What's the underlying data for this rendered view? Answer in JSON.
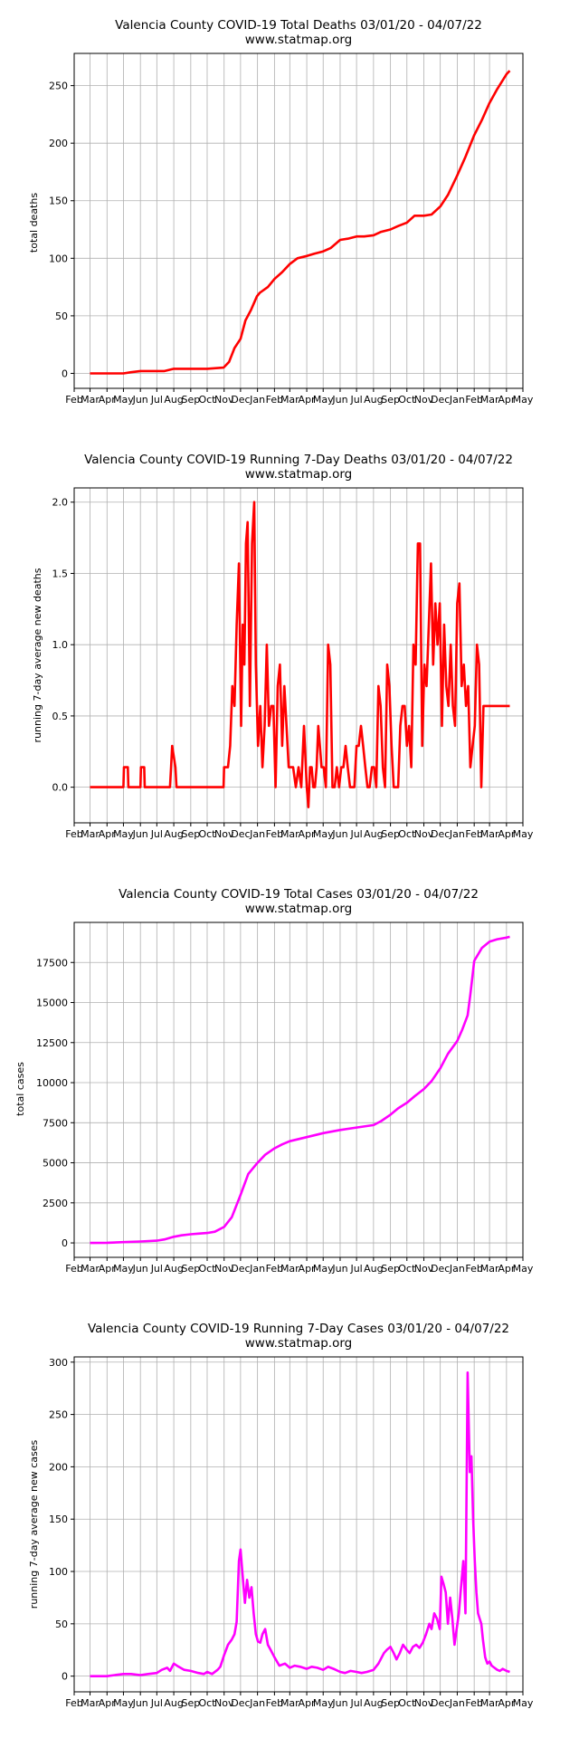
{
  "chart_data": [
    {
      "type": "line",
      "title": "Valencia County COVID-19 Total Deaths 03/01/20 - 04/07/22",
      "subtitle": "www.statmap.org",
      "xlabel": "",
      "ylabel": "total deaths",
      "ylim": [
        -13,
        278
      ],
      "yticks": [
        0,
        50,
        100,
        150,
        200,
        250
      ],
      "xlim": [
        "2020-02-01",
        "2022-05-01"
      ],
      "xticks": [
        "Feb",
        "Mar",
        "Apr",
        "May",
        "Jun",
        "Jul",
        "Aug",
        "Sep",
        "Oct",
        "Nov",
        "Dec",
        "Jan",
        "Feb",
        "Mar",
        "Apr",
        "May",
        "Jun",
        "Jul",
        "Aug",
        "Sep",
        "Oct",
        "Nov",
        "Dec",
        "Jan",
        "Feb",
        "Mar",
        "Apr",
        "May"
      ],
      "grid": true,
      "color": "#ff0000",
      "series": [
        {
          "x": [
            "2020-03-01",
            "2020-04-01",
            "2020-05-01",
            "2020-05-15",
            "2020-06-01",
            "2020-07-01",
            "2020-07-15",
            "2020-08-01",
            "2020-09-01",
            "2020-10-01",
            "2020-10-31",
            "2020-11-10",
            "2020-11-20",
            "2020-12-01",
            "2020-12-10",
            "2020-12-20",
            "2020-12-31",
            "2021-01-05",
            "2021-01-20",
            "2021-02-01",
            "2021-02-15",
            "2021-03-01",
            "2021-03-15",
            "2021-04-01",
            "2021-04-15",
            "2021-05-01",
            "2021-05-15",
            "2021-06-01",
            "2021-06-15",
            "2021-07-01",
            "2021-07-15",
            "2021-08-01",
            "2021-08-15",
            "2021-09-01",
            "2021-09-15",
            "2021-10-01",
            "2021-10-15",
            "2021-11-01",
            "2021-11-15",
            "2021-12-01",
            "2021-12-15",
            "2022-01-01",
            "2022-01-15",
            "2022-02-01",
            "2022-02-15",
            "2022-03-01",
            "2022-03-15",
            "2022-04-01",
            "2022-04-07"
          ],
          "y": [
            0,
            0,
            0,
            1,
            2,
            2,
            2,
            4,
            4,
            4,
            5,
            10,
            22,
            30,
            46,
            55,
            67,
            70,
            75,
            82,
            88,
            95,
            100,
            102,
            104,
            106,
            109,
            116,
            117,
            119,
            119,
            120,
            123,
            125,
            128,
            131,
            137,
            137,
            138,
            145,
            155,
            172,
            187,
            207,
            220,
            235,
            247,
            260,
            263
          ]
        }
      ]
    },
    {
      "type": "line",
      "title": "Valencia County COVID-19 Running 7-Day Deaths 03/01/20 - 04/07/22",
      "subtitle": "www.statmap.org",
      "xlabel": "",
      "ylabel": "running 7-day average new deaths",
      "ylim": [
        -0.25,
        2.1
      ],
      "yticks": [
        0.0,
        0.5,
        1.0,
        1.5,
        2.0
      ],
      "xlim": [
        "2020-02-01",
        "2022-05-01"
      ],
      "xticks": [
        "Feb",
        "Mar",
        "Apr",
        "May",
        "Jun",
        "Jul",
        "Aug",
        "Sep",
        "Oct",
        "Nov",
        "Dec",
        "Jan",
        "Feb",
        "Mar",
        "Apr",
        "May",
        "Jun",
        "Jul",
        "Aug",
        "Sep",
        "Oct",
        "Nov",
        "Dec",
        "Jan",
        "Feb",
        "Mar",
        "Apr",
        "May"
      ],
      "grid": true,
      "color": "#ff0000",
      "series": [
        {
          "x": [
            "2020-03-01",
            "2020-05-01",
            "2020-05-02",
            "2020-05-09",
            "2020-05-10",
            "2020-06-01",
            "2020-06-02",
            "2020-06-08",
            "2020-06-09",
            "2020-07-25",
            "2020-07-27",
            "2020-07-29",
            "2020-08-04",
            "2020-08-06",
            "2020-10-31",
            "2020-11-01",
            "2020-11-07",
            "2020-11-08",
            "2020-11-12",
            "2020-11-16",
            "2020-11-20",
            "2020-11-24",
            "2020-11-28",
            "2020-12-02",
            "2020-12-05",
            "2020-12-08",
            "2020-12-11",
            "2020-12-14",
            "2020-12-18",
            "2020-12-22",
            "2020-12-26",
            "2020-12-29",
            "2021-01-02",
            "2021-01-06",
            "2021-01-10",
            "2021-01-14",
            "2021-01-18",
            "2021-01-22",
            "2021-01-26",
            "2021-01-30",
            "2021-02-03",
            "2021-02-07",
            "2021-02-11",
            "2021-02-15",
            "2021-02-19",
            "2021-02-23",
            "2021-02-27",
            "2021-03-03",
            "2021-03-07",
            "2021-03-12",
            "2021-03-17",
            "2021-03-22",
            "2021-03-27",
            "2021-04-01",
            "2021-04-04",
            "2021-04-07",
            "2021-04-10",
            "2021-04-13",
            "2021-04-16",
            "2021-04-19",
            "2021-04-22",
            "2021-04-25",
            "2021-04-28",
            "2021-05-02",
            "2021-05-06",
            "2021-05-10",
            "2021-05-14",
            "2021-05-18",
            "2021-05-22",
            "2021-05-26",
            "2021-05-30",
            "2021-06-03",
            "2021-06-07",
            "2021-06-11",
            "2021-06-15",
            "2021-06-19",
            "2021-06-23",
            "2021-06-27",
            "2021-07-01",
            "2021-07-05",
            "2021-07-09",
            "2021-07-13",
            "2021-07-17",
            "2021-07-21",
            "2021-07-25",
            "2021-07-29",
            "2021-08-02",
            "2021-08-06",
            "2021-08-10",
            "2021-08-14",
            "2021-08-18",
            "2021-08-22",
            "2021-08-26",
            "2021-08-30",
            "2021-09-03",
            "2021-09-07",
            "2021-09-11",
            "2021-09-15",
            "2021-09-19",
            "2021-09-23",
            "2021-09-27",
            "2021-10-01",
            "2021-10-05",
            "2021-10-09",
            "2021-10-13",
            "2021-10-17",
            "2021-10-21",
            "2021-10-25",
            "2021-10-29",
            "2021-11-02",
            "2021-11-06",
            "2021-11-10",
            "2021-11-14",
            "2021-11-18",
            "2021-11-22",
            "2021-11-26",
            "2021-11-30",
            "2021-12-04",
            "2021-12-08",
            "2021-12-12",
            "2021-12-16",
            "2021-12-20",
            "2021-12-24",
            "2021-12-28",
            "2022-01-01",
            "2022-01-05",
            "2022-01-09",
            "2022-01-13",
            "2022-01-17",
            "2022-01-21",
            "2022-01-25",
            "2022-01-29",
            "2022-02-02",
            "2022-02-06",
            "2022-02-10",
            "2022-02-14",
            "2022-02-18",
            "2022-02-22",
            "2022-02-26",
            "2022-03-02",
            "2022-03-06",
            "2022-03-10",
            "2022-03-14",
            "2022-03-18",
            "2022-03-22",
            "2022-03-26",
            "2022-03-30",
            "2022-04-03",
            "2022-04-07"
          ],
          "y": [
            0,
            0,
            0.14,
            0.14,
            0,
            0,
            0.14,
            0.14,
            0,
            0,
            0.14,
            0.29,
            0.14,
            0,
            0,
            0.14,
            0.14,
            0.14,
            0.29,
            0.71,
            0.57,
            1.14,
            1.57,
            0.43,
            1.14,
            0.86,
            1.71,
            1.86,
            0.57,
            1.71,
            2.0,
            0.86,
            0.29,
            0.57,
            0.14,
            0.43,
            1.0,
            0.43,
            0.57,
            0.57,
            0.0,
            0.71,
            0.86,
            0.29,
            0.71,
            0.43,
            0.14,
            0.14,
            0.14,
            0.0,
            0.14,
            0.0,
            0.43,
            0.0,
            -0.14,
            0.14,
            0.14,
            0.0,
            0.0,
            0.14,
            0.43,
            0.29,
            0.14,
            0.14,
            0.0,
            1.0,
            0.86,
            0.0,
            0.0,
            0.14,
            0.0,
            0.14,
            0.14,
            0.29,
            0.14,
            0.0,
            0.0,
            0.0,
            0.29,
            0.29,
            0.43,
            0.29,
            0.14,
            0.0,
            0.0,
            0.14,
            0.14,
            0.0,
            0.71,
            0.57,
            0.14,
            0.0,
            0.86,
            0.71,
            0.29,
            0.0,
            0.0,
            0.0,
            0.43,
            0.57,
            0.57,
            0.29,
            0.43,
            0.14,
            1.0,
            0.86,
            1.71,
            1.71,
            0.29,
            0.86,
            0.71,
            1.14,
            1.57,
            0.86,
            1.29,
            1.0,
            1.29,
            0.43,
            1.14,
            0.71,
            0.57,
            1.0,
            0.57,
            0.43,
            1.29,
            1.43,
            0.71,
            0.86,
            0.57,
            0.71,
            0.14,
            0.29,
            0.43,
            1.0,
            0.86,
            0.0,
            0.57,
            0.57,
            0.57,
            0.57,
            0.57,
            0.57,
            0.57,
            0.57,
            0.57,
            0.57,
            0.57,
            0.57,
            0.57
          ],
          "note": ""
        }
      ]
    },
    {
      "type": "line",
      "title": "Valencia County COVID-19 Total Cases 03/01/20 - 04/07/22",
      "subtitle": "www.statmap.org",
      "xlabel": "",
      "ylabel": "total cases",
      "ylim": [
        -900,
        20000
      ],
      "yticks": [
        0,
        2500,
        5000,
        7500,
        10000,
        12500,
        15000,
        17500
      ],
      "xlim": [
        "2020-02-01",
        "2022-05-01"
      ],
      "xticks": [
        "Feb",
        "Mar",
        "Apr",
        "May",
        "Jun",
        "Jul",
        "Aug",
        "Sep",
        "Oct",
        "Nov",
        "Dec",
        "Jan",
        "Feb",
        "Mar",
        "Apr",
        "May",
        "Jun",
        "Jul",
        "Aug",
        "Sep",
        "Oct",
        "Nov",
        "Dec",
        "Jan",
        "Feb",
        "Mar",
        "Apr",
        "May"
      ],
      "grid": true,
      "color": "#ff00ff",
      "series": [
        {
          "x": [
            "2020-03-01",
            "2020-04-01",
            "2020-05-01",
            "2020-06-01",
            "2020-07-01",
            "2020-07-15",
            "2020-08-01",
            "2020-08-15",
            "2020-09-01",
            "2020-09-15",
            "2020-10-01",
            "2020-10-15",
            "2020-11-01",
            "2020-11-15",
            "2020-12-01",
            "2020-12-15",
            "2021-01-01",
            "2021-01-15",
            "2021-02-01",
            "2021-02-15",
            "2021-03-01",
            "2021-04-01",
            "2021-05-01",
            "2021-06-01",
            "2021-07-01",
            "2021-08-01",
            "2021-08-15",
            "2021-09-01",
            "2021-09-15",
            "2021-10-01",
            "2021-10-15",
            "2021-11-01",
            "2021-11-15",
            "2021-12-01",
            "2021-12-15",
            "2022-01-01",
            "2022-01-10",
            "2022-01-20",
            "2022-01-25",
            "2022-02-01",
            "2022-02-15",
            "2022-03-01",
            "2022-03-15",
            "2022-04-01",
            "2022-04-07"
          ],
          "y": [
            0,
            10,
            50,
            90,
            140,
            220,
            380,
            470,
            540,
            580,
            620,
            700,
            1000,
            1600,
            3000,
            4300,
            5000,
            5500,
            5900,
            6150,
            6350,
            6600,
            6850,
            7050,
            7200,
            7350,
            7600,
            8000,
            8400,
            8750,
            9150,
            9600,
            10100,
            10900,
            11800,
            12600,
            13300,
            14200,
            15500,
            17600,
            18400,
            18800,
            18950,
            19050,
            19100
          ]
        }
      ]
    },
    {
      "type": "line",
      "title": "Valencia County COVID-19 Running 7-Day Cases 03/01/20 - 04/07/22",
      "subtitle": "www.statmap.org",
      "xlabel": "",
      "ylabel": "running 7-day average new cases",
      "ylim": [
        -15,
        305
      ],
      "yticks": [
        0,
        50,
        100,
        150,
        200,
        250,
        300
      ],
      "xlim": [
        "2020-02-01",
        "2022-05-01"
      ],
      "xticks": [
        "Feb",
        "Mar",
        "Apr",
        "May",
        "Jun",
        "Jul",
        "Aug",
        "Sep",
        "Oct",
        "Nov",
        "Dec",
        "Jan",
        "Feb",
        "Mar",
        "Apr",
        "May",
        "Jun",
        "Jul",
        "Aug",
        "Sep",
        "Oct",
        "Nov",
        "Dec",
        "Jan",
        "Feb",
        "Mar",
        "Apr",
        "May"
      ],
      "grid": true,
      "color": "#ff00ff",
      "series": [
        {
          "x": [
            "2020-03-01",
            "2020-04-01",
            "2020-04-15",
            "2020-05-01",
            "2020-05-15",
            "2020-06-01",
            "2020-06-15",
            "2020-07-01",
            "2020-07-10",
            "2020-07-20",
            "2020-07-25",
            "2020-08-01",
            "2020-08-10",
            "2020-08-20",
            "2020-09-01",
            "2020-09-15",
            "2020-09-25",
            "2020-10-01",
            "2020-10-10",
            "2020-10-20",
            "2020-10-25",
            "2020-11-01",
            "2020-11-08",
            "2020-11-15",
            "2020-11-20",
            "2020-11-24",
            "2020-11-28",
            "2020-12-01",
            "2020-12-05",
            "2020-12-09",
            "2020-12-13",
            "2020-12-17",
            "2020-12-21",
            "2020-12-25",
            "2020-12-29",
            "2021-01-02",
            "2021-01-06",
            "2021-01-10",
            "2021-01-15",
            "2021-01-20",
            "2021-01-25",
            "2021-02-01",
            "2021-02-10",
            "2021-02-20",
            "2021-03-01",
            "2021-03-10",
            "2021-03-20",
            "2021-04-01",
            "2021-04-10",
            "2021-04-20",
            "2021-05-01",
            "2021-05-10",
            "2021-05-20",
            "2021-06-01",
            "2021-06-10",
            "2021-06-20",
            "2021-07-01",
            "2021-07-10",
            "2021-07-20",
            "2021-08-01",
            "2021-08-10",
            "2021-08-20",
            "2021-08-25",
            "2021-09-01",
            "2021-09-07",
            "2021-09-12",
            "2021-09-18",
            "2021-09-24",
            "2021-10-01",
            "2021-10-06",
            "2021-10-12",
            "2021-10-18",
            "2021-10-24",
            "2021-10-30",
            "2021-11-05",
            "2021-11-11",
            "2021-11-15",
            "2021-11-20",
            "2021-11-25",
            "2021-11-30",
            "2021-12-03",
            "2021-12-07",
            "2021-12-11",
            "2021-12-15",
            "2021-12-19",
            "2021-12-23",
            "2021-12-27",
            "2021-12-31",
            "2022-01-04",
            "2022-01-08",
            "2022-01-12",
            "2022-01-16",
            "2022-01-20",
            "2022-01-24",
            "2022-01-27",
            "2022-01-30",
            "2022-02-02",
            "2022-02-05",
            "2022-02-08",
            "2022-02-11",
            "2022-02-14",
            "2022-02-17",
            "2022-02-21",
            "2022-02-25",
            "2022-03-01",
            "2022-03-05",
            "2022-03-10",
            "2022-03-15",
            "2022-03-20",
            "2022-03-25",
            "2022-04-01",
            "2022-04-07"
          ],
          "y": [
            0,
            0,
            1,
            2,
            2,
            1,
            2,
            3,
            6,
            8,
            5,
            12,
            9,
            6,
            5,
            3,
            2,
            4,
            2,
            6,
            9,
            20,
            30,
            35,
            40,
            52,
            110,
            121,
            95,
            70,
            92,
            75,
            85,
            60,
            40,
            33,
            32,
            40,
            45,
            30,
            25,
            18,
            10,
            12,
            8,
            10,
            9,
            7,
            9,
            8,
            6,
            9,
            7,
            4,
            3,
            5,
            4,
            3,
            4,
            6,
            12,
            22,
            25,
            28,
            22,
            16,
            22,
            30,
            25,
            22,
            28,
            30,
            27,
            32,
            40,
            50,
            45,
            60,
            55,
            45,
            95,
            88,
            80,
            50,
            75,
            55,
            30,
            45,
            60,
            85,
            110,
            60,
            290,
            195,
            210,
            150,
            110,
            80,
            60,
            55,
            50,
            35,
            18,
            12,
            14,
            10,
            8,
            6,
            5,
            7,
            5,
            4
          ]
        }
      ]
    }
  ]
}
